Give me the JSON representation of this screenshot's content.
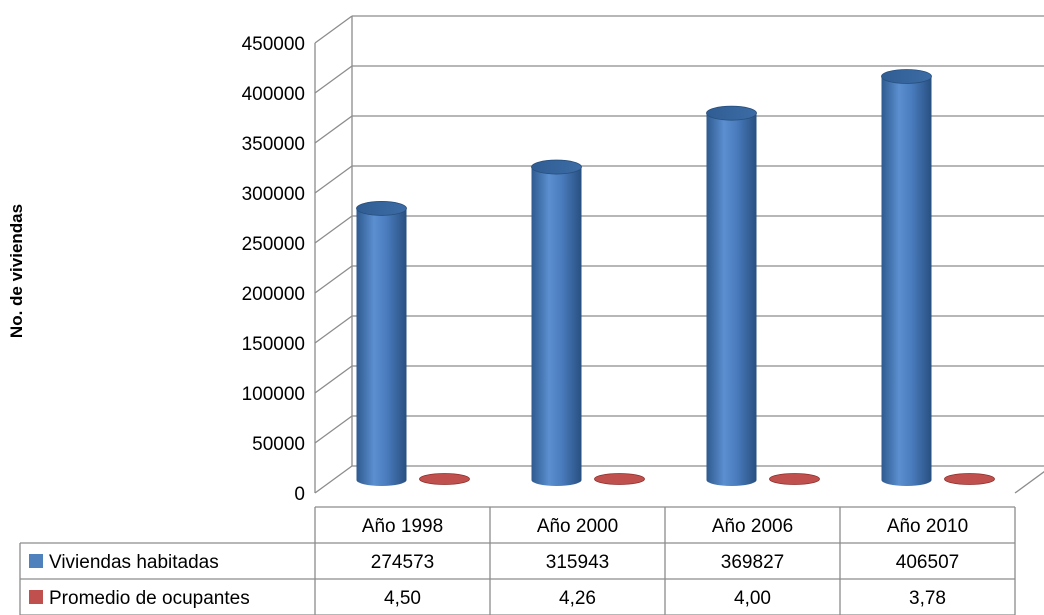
{
  "chart_data": {
    "type": "bar",
    "title": "",
    "ylabel": "No. de viviendas",
    "xlabel": "",
    "ylim": [
      0,
      450000
    ],
    "yticks": [
      0,
      50000,
      100000,
      150000,
      200000,
      250000,
      300000,
      350000,
      400000,
      450000
    ],
    "categories": [
      "Año 1998",
      "Año 2000",
      "Año 2006",
      "Año 2010"
    ],
    "series": [
      {
        "name": "Viviendas habitadas",
        "values": [
          274573,
          315943,
          369827,
          406507
        ],
        "labels": [
          "274573",
          "315943",
          "369827",
          "406507"
        ],
        "color": "#4f81bd"
      },
      {
        "name": "Promedio de ocupantes",
        "values": [
          4.5,
          4.26,
          4.0,
          3.78
        ],
        "labels": [
          "4,50",
          "4,26",
          "4,00",
          "3,78"
        ],
        "color": "#c0504d"
      }
    ],
    "grid": true,
    "legend": "data-table-below",
    "style": "3d-cylinder"
  }
}
